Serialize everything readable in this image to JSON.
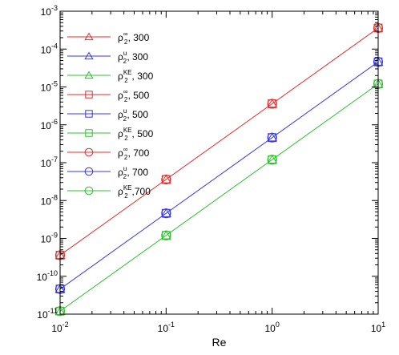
{
  "chart_data": {
    "type": "scatter",
    "title": "",
    "xlabel": "Re",
    "ylabel": "",
    "xscale": "log",
    "yscale": "log",
    "xlim": [
      0.01,
      10
    ],
    "ylim": [
      1e-11,
      0.001
    ],
    "x_ticks": [
      {
        "value": 0.01,
        "mant": "10",
        "exp": "-2"
      },
      {
        "value": 0.1,
        "mant": "10",
        "exp": "-1"
      },
      {
        "value": 1,
        "mant": "10",
        "exp": "0"
      },
      {
        "value": 10,
        "mant": "10",
        "exp": "1"
      }
    ],
    "y_ticks": [
      {
        "value": 1e-11,
        "mant": "10",
        "exp": "-11"
      },
      {
        "value": 1e-10,
        "mant": "10",
        "exp": "-10"
      },
      {
        "value": 1e-09,
        "mant": "10",
        "exp": "-9"
      },
      {
        "value": 1e-08,
        "mant": "10",
        "exp": "-8"
      },
      {
        "value": 1e-07,
        "mant": "10",
        "exp": "-7"
      },
      {
        "value": 1e-06,
        "mant": "10",
        "exp": "-6"
      },
      {
        "value": 1e-05,
        "mant": "10",
        "exp": "-5"
      },
      {
        "value": 0.0001,
        "mant": "10",
        "exp": "-4"
      },
      {
        "value": 0.001,
        "mant": "10",
        "exp": "-3"
      }
    ],
    "grid": false,
    "legend_position": "top-left",
    "fit_lines": [
      {
        "color": "#e03030",
        "x": [
          0.01,
          10
        ],
        "y": [
          3.6e-10,
          0.00036
        ]
      },
      {
        "color": "#3a3ae0",
        "x": [
          0.01,
          10
        ],
        "y": [
          4.6e-11,
          4.6e-05
        ]
      },
      {
        "color": "#30c030",
        "x": [
          0.01,
          10
        ],
        "y": [
          1.2e-11,
          1.2e-05
        ]
      }
    ],
    "series": [
      {
        "base": "ρ",
        "sub": "2",
        "sup": "∞",
        "suffix": ", 300",
        "color": "#e03030",
        "marker": "triangle",
        "x": [
          0.01,
          0.1,
          1,
          10
        ],
        "y": [
          3.6e-10,
          3.6e-08,
          3.6e-06,
          0.00036
        ]
      },
      {
        "base": "ρ",
        "sub": "2",
        "sup": "u",
        "suffix": ", 300",
        "color": "#3a3ae0",
        "marker": "triangle",
        "x": [
          0.01,
          0.1,
          1,
          10
        ],
        "y": [
          4.6e-11,
          4.6e-09,
          4.6e-07,
          4.6e-05
        ]
      },
      {
        "base": "ρ",
        "sub": "2",
        "sup": "KE",
        "suffix": ", 300",
        "color": "#30c030",
        "marker": "triangle",
        "x": [
          0.01,
          0.1,
          1,
          10
        ],
        "y": [
          1.2e-11,
          1.2e-09,
          1.2e-07,
          1.2e-05
        ]
      },
      {
        "base": "ρ",
        "sub": "2",
        "sup": "∞",
        "suffix": ", 500",
        "color": "#e03030",
        "marker": "square",
        "x": [
          0.01,
          0.1,
          1,
          10
        ],
        "y": [
          3.6e-10,
          3.6e-08,
          3.6e-06,
          0.00036
        ]
      },
      {
        "base": "ρ",
        "sub": "2",
        "sup": "u",
        "suffix": ", 500",
        "color": "#3a3ae0",
        "marker": "square",
        "x": [
          0.01,
          0.1,
          1,
          10
        ],
        "y": [
          4.6e-11,
          4.6e-09,
          4.6e-07,
          4.6e-05
        ]
      },
      {
        "base": "ρ",
        "sub": "2",
        "sup": "KE",
        "suffix": ", 500",
        "color": "#30c030",
        "marker": "square",
        "x": [
          0.01,
          0.1,
          1,
          10
        ],
        "y": [
          1.2e-11,
          1.2e-09,
          1.2e-07,
          1.2e-05
        ]
      },
      {
        "base": "ρ",
        "sub": "2",
        "sup": "∞",
        "suffix": ", 700",
        "color": "#e03030",
        "marker": "circle",
        "x": [
          0.01,
          0.1,
          1,
          10
        ],
        "y": [
          3.6e-10,
          3.6e-08,
          3.6e-06,
          0.00036
        ]
      },
      {
        "base": "ρ",
        "sub": "2",
        "sup": "u",
        "suffix": ", 700",
        "color": "#3a3ae0",
        "marker": "circle",
        "x": [
          0.01,
          0.1,
          1,
          10
        ],
        "y": [
          4.6e-11,
          4.6e-09,
          4.6e-07,
          4.6e-05
        ]
      },
      {
        "base": "ρ",
        "sub": "2",
        "sup": "KE",
        "suffix": ",700",
        "color": "#30c030",
        "marker": "circle",
        "x": [
          0.01,
          0.1,
          1,
          10
        ],
        "y": [
          1.2e-11,
          1.2e-09,
          1.2e-07,
          1.2e-05
        ]
      }
    ]
  }
}
